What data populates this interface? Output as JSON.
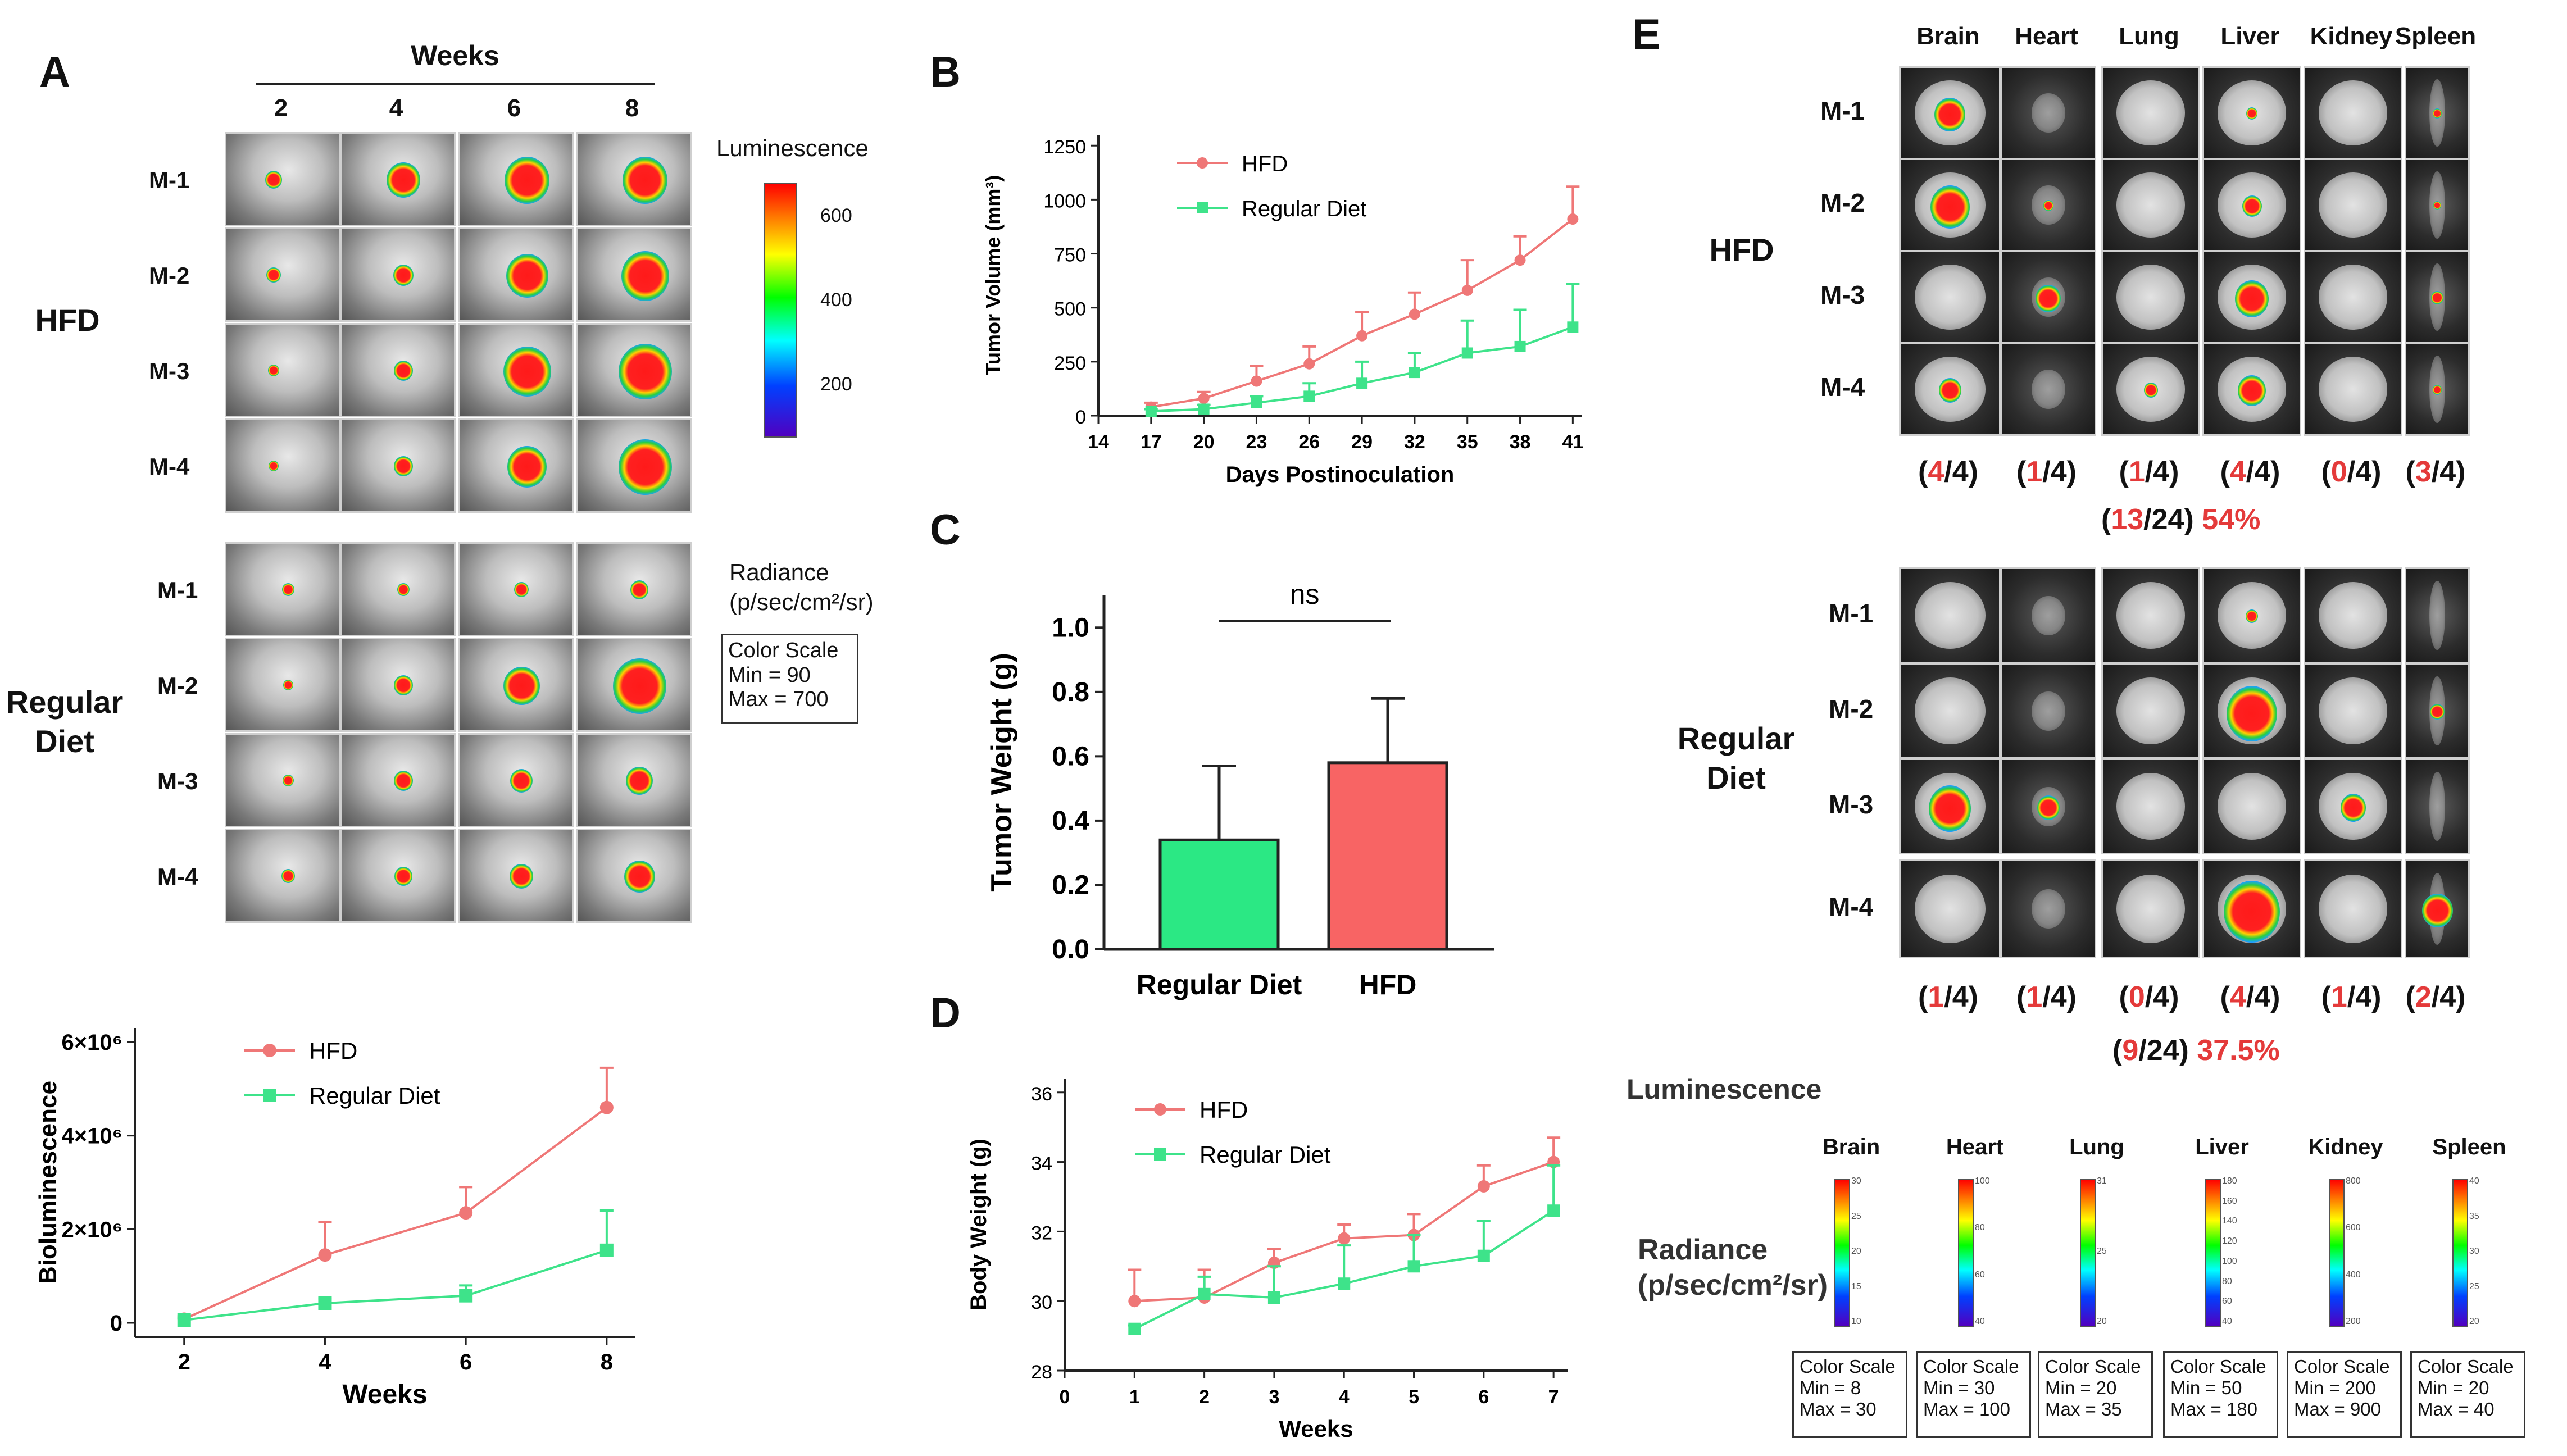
{
  "panel_a": {
    "letter": "A",
    "weeks_title": "Weeks",
    "week_labels": [
      "2",
      "4",
      "6",
      "8"
    ],
    "groups": [
      "HFD",
      "Regular Diet"
    ],
    "mice": [
      "M-1",
      "M-2",
      "M-3",
      "M-4"
    ],
    "colorbar_title": "Luminescence",
    "colorbar_ticks": [
      "600",
      "400",
      "200"
    ],
    "radiance_label": "Radiance",
    "radiance_units": "(p/sec/cm²/sr)",
    "color_scale": {
      "title": "Color Scale",
      "min": "Min = 90",
      "max": "Max = 700"
    }
  },
  "panel_b": {
    "letter": "B"
  },
  "panel_c": {
    "letter": "C",
    "ns_label": "ns"
  },
  "panel_d": {
    "letter": "D"
  },
  "panel_e": {
    "letter": "E",
    "organs": [
      "Brain",
      "Heart",
      "Lung",
      "Liver",
      "Kidney",
      "Spleen"
    ],
    "mice": [
      "M-1",
      "M-2",
      "M-3",
      "M-4"
    ],
    "hfd_label": "HFD",
    "reg_label_line1": "Regular",
    "reg_label_line2": "Diet",
    "hfd_counts": [
      {
        "n": "4",
        "d": "/4)"
      },
      {
        "n": "1",
        "d": "/4)"
      },
      {
        "n": "1",
        "d": "/4)"
      },
      {
        "n": "4",
        "d": "/4)"
      },
      {
        "n": "0",
        "d": "/4)"
      },
      {
        "n": "3",
        "d": "/4)"
      }
    ],
    "hfd_total": {
      "n": "13",
      "d": "/24)",
      "pct": "54%"
    },
    "reg_counts": [
      {
        "n": "1",
        "d": "/4)"
      },
      {
        "n": "1",
        "d": "/4)"
      },
      {
        "n": "0",
        "d": "/4)"
      },
      {
        "n": "4",
        "d": "/4)"
      },
      {
        "n": "1",
        "d": "/4)"
      },
      {
        "n": "2",
        "d": "/4)"
      }
    ],
    "reg_total": {
      "n": "9",
      "d": "/24)",
      "pct": "37.5%"
    },
    "luminescence_label": "Luminescence",
    "radiance_label": "Radiance",
    "radiance_units": "(p/sec/cm²/sr)",
    "organ_scales": [
      {
        "organ": "Brain",
        "ticks": [
          "30",
          "25",
          "20",
          "15",
          "10"
        ],
        "title": "Color Scale",
        "min": "Min = 8",
        "max": "Max = 30"
      },
      {
        "organ": "Heart",
        "ticks": [
          "100",
          "80",
          "60",
          "40"
        ],
        "title": "Color Scale",
        "min": "Min = 30",
        "max": "Max = 100"
      },
      {
        "organ": "Lung",
        "ticks": [
          "31",
          "25",
          "20"
        ],
        "title": "Color Scale",
        "min": "Min = 20",
        "max": "Max = 35"
      },
      {
        "organ": "Liver",
        "ticks": [
          "180",
          "160",
          "140",
          "120",
          "100",
          "80",
          "60",
          "40"
        ],
        "title": "Color Scale",
        "min": "Min = 50",
        "max": "Max = 180"
      },
      {
        "organ": "Kidney",
        "ticks": [
          "800",
          "600",
          "400",
          "200"
        ],
        "title": "Color Scale",
        "min": "Min = 200",
        "max": "Max = 900"
      },
      {
        "organ": "Spleen",
        "ticks": [
          "40",
          "35",
          "30",
          "25",
          "20"
        ],
        "title": "Color Scale",
        "min": "Min = 20",
        "max": "Max = 40"
      }
    ]
  },
  "chart_data": [
    {
      "id": "A-bioluminescence",
      "type": "line",
      "xlabel": "Weeks",
      "ylabel": "Bioluminescence",
      "x": [
        2,
        4,
        6,
        8
      ],
      "xticks": [
        "2",
        "4",
        "6",
        "8"
      ],
      "ylim": [
        -300000,
        6300000
      ],
      "yticks": [
        0,
        2000000,
        4000000,
        6000000
      ],
      "ytick_labels": [
        "0",
        "2×10⁶",
        "4×10⁶",
        "6×10⁶"
      ],
      "series": [
        {
          "name": "HFD",
          "color": "#ef7777",
          "marker": "circle",
          "values": [
            80000,
            1450000,
            2350000,
            4600000
          ],
          "errors": [
            60000,
            700000,
            550000,
            850000
          ]
        },
        {
          "name": "Regular Diet",
          "color": "#3ee38a",
          "marker": "square",
          "values": [
            60000,
            420000,
            580000,
            1550000
          ],
          "errors": [
            40000,
            100000,
            220000,
            850000
          ]
        }
      ],
      "legend": "upper-left"
    },
    {
      "id": "B-tumor-volume",
      "type": "line",
      "xlabel": "Days Postinoculation",
      "ylabel": "Tumor Volume (mm³)",
      "x": [
        17,
        20,
        23,
        26,
        29,
        32,
        35,
        38,
        41
      ],
      "xlim": [
        14,
        41
      ],
      "xticks": [
        "14",
        "17",
        "20",
        "23",
        "26",
        "29",
        "32",
        "35",
        "38",
        "41"
      ],
      "ylim": [
        0,
        1250
      ],
      "yticks": [
        "0",
        "250",
        "500",
        "750",
        "1000",
        "1250"
      ],
      "series": [
        {
          "name": "HFD",
          "color": "#ef7777",
          "marker": "circle",
          "values": [
            40,
            80,
            160,
            240,
            370,
            470,
            580,
            720,
            910
          ],
          "errors": [
            20,
            30,
            70,
            80,
            110,
            100,
            140,
            110,
            150
          ]
        },
        {
          "name": "Regular Diet",
          "color": "#3ee38a",
          "marker": "square",
          "values": [
            20,
            30,
            60,
            90,
            150,
            200,
            290,
            320,
            410
          ],
          "errors": [
            10,
            20,
            30,
            60,
            100,
            90,
            150,
            170,
            200
          ]
        }
      ],
      "legend": "upper-left"
    },
    {
      "id": "C-tumor-weight",
      "type": "bar",
      "ylabel": "Tumor Weight (g)",
      "categories": [
        "Regular Diet",
        "HFD"
      ],
      "values": [
        0.34,
        0.58
      ],
      "errors": [
        0.23,
        0.2
      ],
      "colors": [
        "#2be884",
        "#f86464"
      ],
      "ylim": [
        0,
        1.0
      ],
      "yticks": [
        "0.0",
        "0.2",
        "0.4",
        "0.6",
        "0.8",
        "1.0"
      ],
      "annotation": "ns"
    },
    {
      "id": "D-body-weight",
      "type": "line",
      "xlabel": "Weeks",
      "ylabel": "Body Weight (g)",
      "x": [
        1,
        2,
        3,
        4,
        5,
        6,
        7
      ],
      "xlim": [
        0,
        7
      ],
      "xticks": [
        "0",
        "1",
        "2",
        "3",
        "4",
        "5",
        "6",
        "7"
      ],
      "ylim": [
        28,
        36
      ],
      "yticks": [
        "28",
        "30",
        "32",
        "34",
        "36"
      ],
      "series": [
        {
          "name": "HFD",
          "color": "#ef7777",
          "marker": "circle",
          "values": [
            30.0,
            30.1,
            31.1,
            31.8,
            31.9,
            33.3,
            34.0
          ],
          "errors": [
            0.9,
            0.8,
            0.4,
            0.4,
            0.6,
            0.6,
            0.7
          ]
        },
        {
          "name": "Regular Diet",
          "color": "#3ee38a",
          "marker": "square",
          "values": [
            29.2,
            30.2,
            30.1,
            30.5,
            31.0,
            31.3,
            32.6
          ],
          "errors": [
            0.1,
            0.5,
            0.9,
            1.1,
            0.9,
            1.0,
            1.3
          ]
        }
      ],
      "legend": "upper-left"
    }
  ]
}
